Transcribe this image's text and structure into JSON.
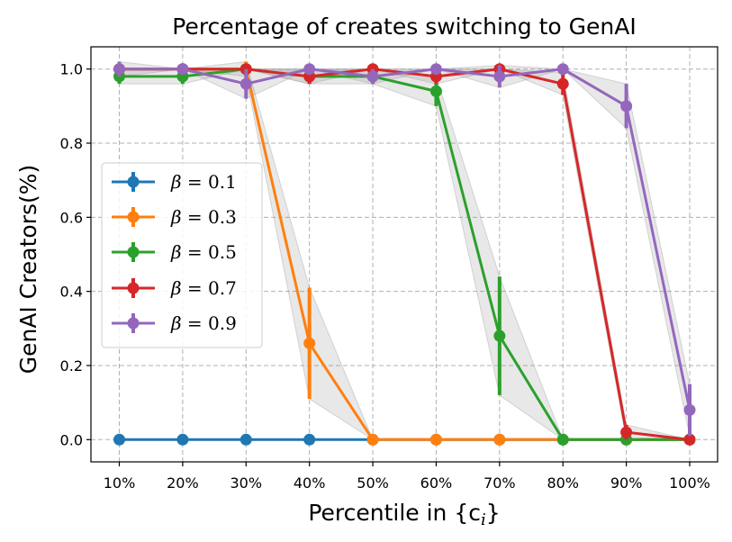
{
  "chart_data": {
    "type": "line",
    "title": "Percentage of creates switching to GenAI",
    "xlabel": "Percentile in {c",
    "xlabel_sub": "i",
    "xlabel_end": "}",
    "ylabel": "GenAI Creators(%)",
    "categories": [
      "10%",
      "20%",
      "30%",
      "40%",
      "50%",
      "60%",
      "70%",
      "80%",
      "90%",
      "100%"
    ],
    "yticks": [
      "0.0",
      "0.2",
      "0.4",
      "0.6",
      "0.8",
      "1.0"
    ],
    "ytick_values": [
      0.0,
      0.2,
      0.4,
      0.6,
      0.8,
      1.0
    ],
    "ylim": [
      -0.06,
      1.06
    ],
    "grid": true,
    "legend_position": "center-left",
    "series": [
      {
        "name": "β = 0.1",
        "label_greek": "β",
        "label_value": " = 0.1",
        "color": "#1f77b4",
        "values": [
          0,
          0,
          0,
          0,
          0,
          0,
          0,
          0,
          0,
          0
        ],
        "errors": [
          0,
          0,
          0,
          0,
          0,
          0,
          0,
          0,
          0,
          0
        ]
      },
      {
        "name": "β = 0.3",
        "label_greek": "β",
        "label_value": " = 0.3",
        "color": "#ff7f0e",
        "values": [
          1.0,
          1.0,
          1.0,
          0.26,
          0.0,
          0.0,
          0.0,
          0.0,
          0.0,
          0.0
        ],
        "errors": [
          0,
          0,
          0.02,
          0.15,
          0,
          0,
          0,
          0,
          0,
          0
        ]
      },
      {
        "name": "β = 0.5",
        "label_greek": "β",
        "label_value": " = 0.5",
        "color": "#2ca02c",
        "values": [
          0.98,
          0.98,
          1.0,
          0.98,
          0.98,
          0.94,
          0.28,
          0.0,
          0.0,
          0.0
        ],
        "errors": [
          0.02,
          0.02,
          0,
          0.02,
          0.02,
          0.04,
          0.16,
          0,
          0,
          0
        ]
      },
      {
        "name": "β = 0.7",
        "label_greek": "β",
        "label_value": " = 0.7",
        "color": "#d62728",
        "values": [
          1.0,
          1.0,
          1.0,
          0.98,
          1.0,
          0.98,
          1.0,
          0.96,
          0.02,
          0.0
        ],
        "errors": [
          0,
          0,
          0,
          0.02,
          0,
          0.02,
          0,
          0.03,
          0.02,
          0
        ]
      },
      {
        "name": "β = 0.9",
        "label_greek": "β",
        "label_value": " = 0.9",
        "color": "#9467bd",
        "values": [
          1.0,
          1.0,
          0.96,
          1.0,
          0.98,
          1.0,
          0.98,
          1.0,
          0.9,
          0.08
        ],
        "errors": [
          0.02,
          0,
          0.04,
          0,
          0.02,
          0,
          0.03,
          0,
          0.06,
          0.07
        ]
      }
    ]
  }
}
